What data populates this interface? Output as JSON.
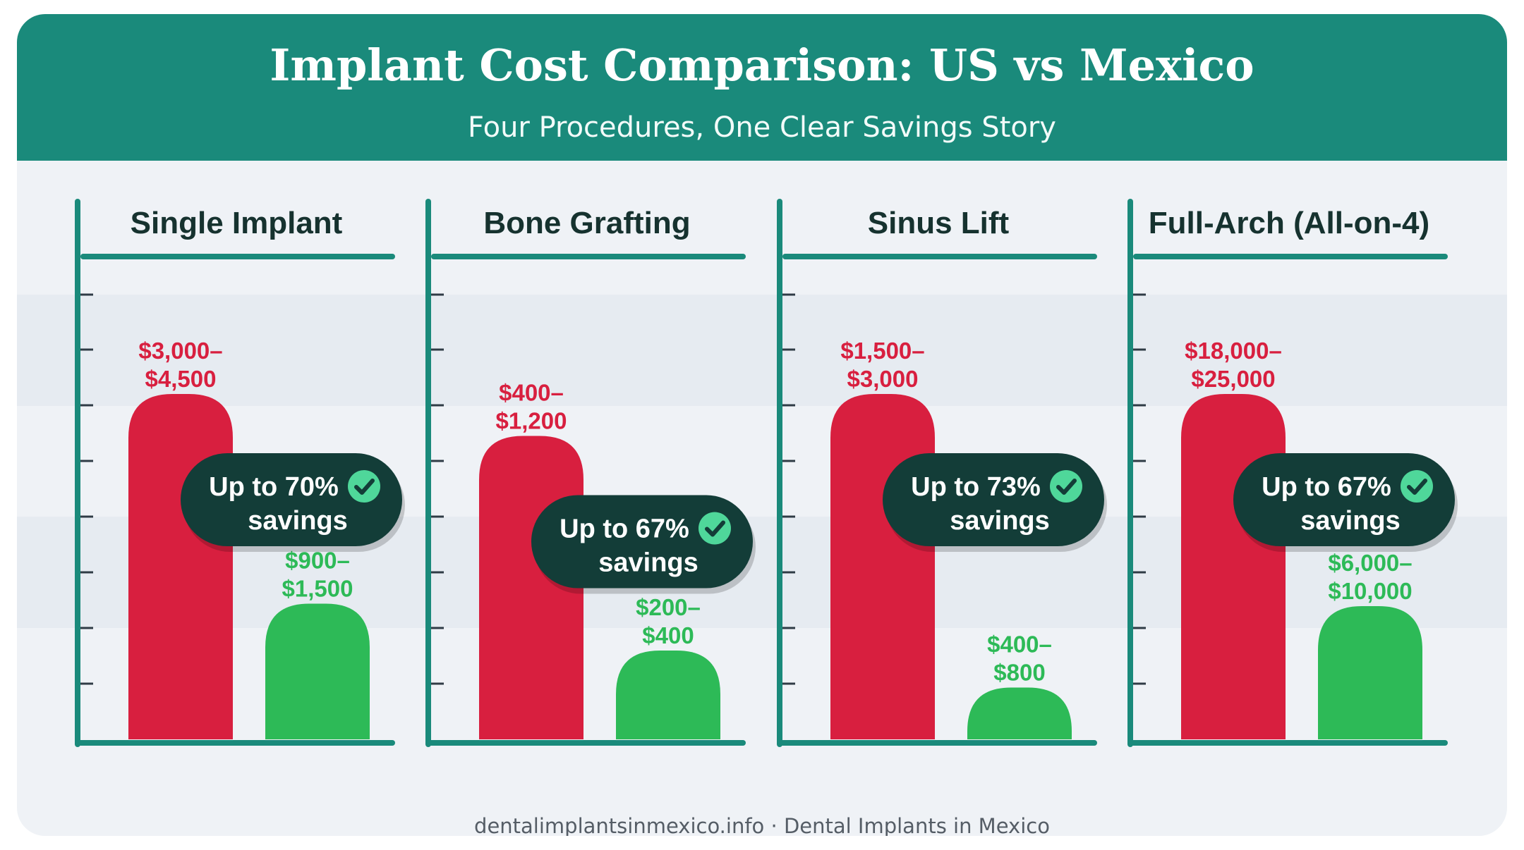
{
  "header": {
    "title": "Implant Cost Comparison: US vs Mexico",
    "subtitle": "Four Procedures, One Clear Savings Story"
  },
  "footer": {
    "text": "dentalimplantsinmexico.info · Dental Implants in Mexico"
  },
  "colors": {
    "header_bg": "#1a8a7b",
    "us_bar": "#d81f3f",
    "mexico_bar": "#2dba57",
    "axis": "#1a8a7b",
    "badge_bg": "#133d38",
    "check": "#4fd79a"
  },
  "chart_data": {
    "type": "bar",
    "series_note_hidden": false,
    "categories": [
      "Single Implant",
      "Bone Grafting",
      "Sinus Lift",
      "Full-Arch (All-on-4)"
    ],
    "series": [
      {
        "key": "us",
        "range_labels": [
          [
            "$3,000–",
            "$4,500"
          ],
          [
            "$400–",
            "$1,200"
          ],
          [
            "$1,500–",
            "$3,000"
          ],
          [
            "$18,000–",
            "$25,000"
          ]
        ],
        "ranges": [
          [
            3000,
            4500
          ],
          [
            400,
            1200
          ],
          [
            1500,
            3000
          ],
          [
            18000,
            25000
          ]
        ],
        "relative_height": [
          0.7,
          0.615,
          0.7,
          0.7
        ],
        "color": "#d81f3f"
      },
      {
        "key": "mexico",
        "range_labels": [
          [
            "$900–",
            "$1,500"
          ],
          [
            "$200–",
            "$400"
          ],
          [
            "$400–",
            "$800"
          ],
          [
            "$6,000–",
            "$10,000"
          ]
        ],
        "ranges": [
          [
            900,
            1500
          ],
          [
            200,
            400
          ],
          [
            400,
            800
          ],
          [
            6000,
            10000
          ]
        ],
        "relative_height": [
          0.275,
          0.18,
          0.105,
          0.27
        ],
        "color": "#2dba57"
      }
    ],
    "savings": [
      {
        "line1": "Up to 70%",
        "line2": "savings",
        "percent": 70
      },
      {
        "line1": "Up to 67%",
        "line2": "savings",
        "percent": 67
      },
      {
        "line1": "Up to 73%",
        "line2": "savings",
        "percent": 73
      },
      {
        "line1": "Up to 67%",
        "line2": "savings",
        "percent": 67
      }
    ],
    "grid": true,
    "legend": "none"
  }
}
